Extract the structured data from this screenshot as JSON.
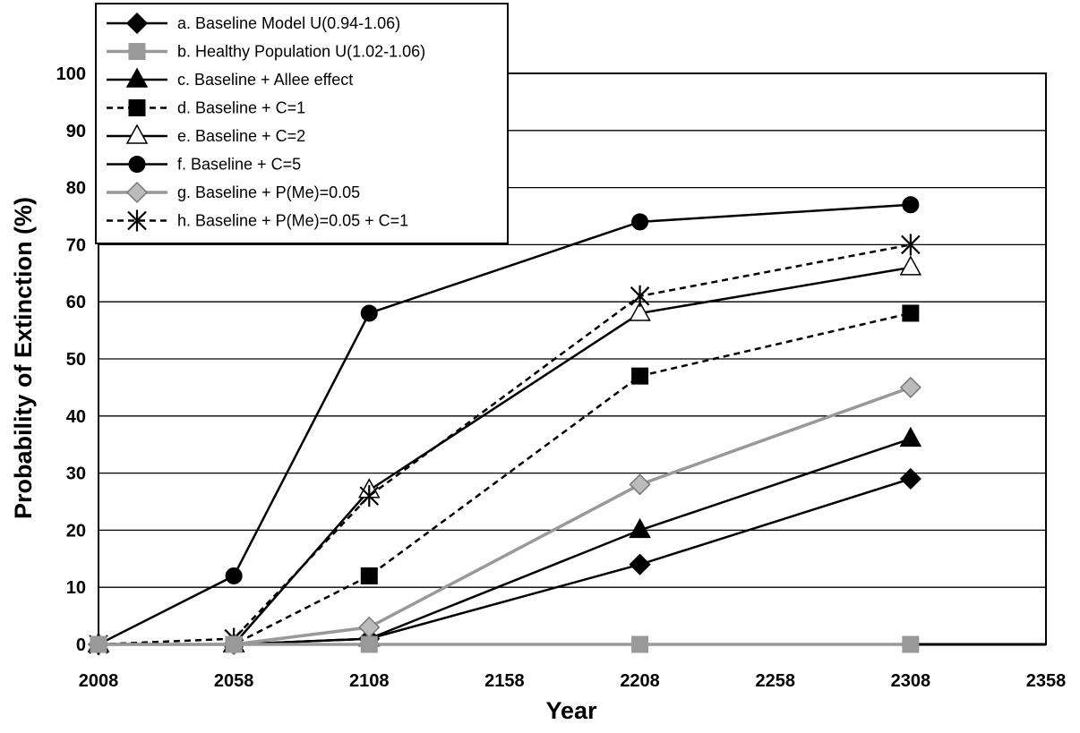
{
  "chart_data": {
    "type": "line",
    "title": "",
    "xlabel": "Year",
    "ylabel": "Probability of Extinction (%)",
    "xlim": [
      2008,
      2358
    ],
    "ylim": [
      0,
      100
    ],
    "x_ticks": [
      "2008",
      "2058",
      "2108",
      "2158",
      "2208",
      "2258",
      "2308",
      "2358"
    ],
    "y_ticks": [
      "0",
      "10",
      "20",
      "30",
      "40",
      "50",
      "60",
      "70",
      "80",
      "90",
      "100"
    ],
    "grid": "horizontal",
    "legend_position": "top-left",
    "x": [
      2008,
      2058,
      2108,
      2208,
      2308
    ],
    "series": [
      {
        "name": "a. Baseline Model U(0.94-1.06)",
        "values": [
          0,
          0,
          1,
          14,
          29
        ],
        "color": "#000000",
        "dash": "solid",
        "marker": "diamond",
        "marker_fill": "#000000"
      },
      {
        "name": "b. Healthy Population U(1.02-1.06)",
        "values": [
          0,
          0,
          0,
          0,
          0
        ],
        "color": "#999999",
        "dash": "solid",
        "marker": "square",
        "marker_fill": "#999999"
      },
      {
        "name": "c. Baseline + Allee effect",
        "values": [
          0,
          0,
          1,
          20,
          36
        ],
        "color": "#000000",
        "dash": "solid",
        "marker": "triangle",
        "marker_fill": "#000000"
      },
      {
        "name": "d. Baseline + C=1",
        "values": [
          0,
          0,
          12,
          47,
          58
        ],
        "color": "#000000",
        "dash": "dashed",
        "marker": "square",
        "marker_fill": "#000000"
      },
      {
        "name": "e. Baseline + C=2",
        "values": [
          0,
          0,
          27,
          58,
          66
        ],
        "color": "#000000",
        "dash": "solid",
        "marker": "triangle",
        "marker_fill": "#ffffff"
      },
      {
        "name": "f. Baseline + C=5",
        "values": [
          0,
          12,
          58,
          74,
          77
        ],
        "color": "#000000",
        "dash": "solid",
        "marker": "circle",
        "marker_fill": "#000000"
      },
      {
        "name": "g. Baseline + P(Me)=0.05",
        "values": [
          0,
          0,
          3,
          28,
          45
        ],
        "color": "#999999",
        "dash": "solid",
        "marker": "diamond",
        "marker_fill": "#bbbbbb"
      },
      {
        "name": "h. Baseline + P(Me)=0.05 + C=1",
        "values": [
          0,
          1,
          26,
          61,
          70
        ],
        "color": "#000000",
        "dash": "dashed",
        "marker": "star",
        "marker_fill": "#000000"
      }
    ]
  }
}
